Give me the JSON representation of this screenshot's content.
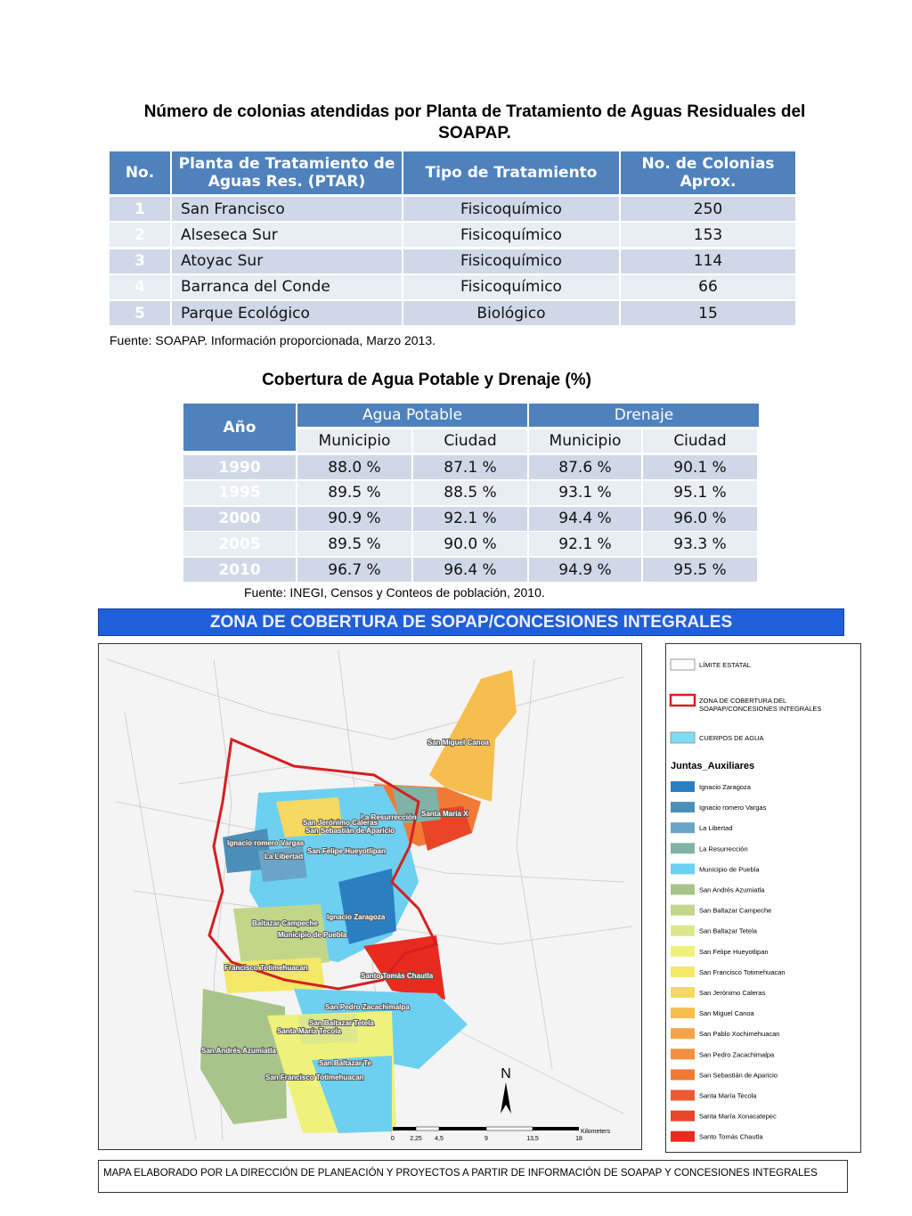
{
  "table1": {
    "title": "Número de colonias atendidas por Planta de Tratamiento de Aguas Residuales del SOAPAP.",
    "header": [
      "No.",
      "Planta de Tratamiento de Aguas Res. (PTAR)",
      "Tipo de Tratamiento",
      "No. de Colonias Aprox."
    ],
    "rows": [
      [
        "1",
        "San Francisco",
        "Fisicoquímico",
        "250"
      ],
      [
        "2",
        "Alseseca Sur",
        "Fisicoquímico",
        "153"
      ],
      [
        "3",
        "Atoyac Sur",
        "Fisicoquímico",
        "114"
      ],
      [
        "4",
        "Barranca del Conde",
        "Fisicoquímico",
        "66"
      ],
      [
        "5",
        "Parque Ecológico",
        "Biológico",
        "15"
      ]
    ],
    "source": "Fuente: SOAPAP. Información proporcionada, Marzo 2013."
  },
  "table2": {
    "title": "Cobertura de Agua Potable y Drenaje (%)",
    "header_top": [
      "Año",
      "Agua Potable",
      "Drenaje"
    ],
    "header_sub": [
      "Municipio",
      "Ciudad",
      "Municipio",
      "Ciudad"
    ],
    "rows": [
      [
        "1990",
        "88.0 %",
        "87.1 %",
        "87.6 %",
        "90.1 %"
      ],
      [
        "1995",
        "89.5 %",
        "88.5 %",
        "93.1 %",
        "95.1 %"
      ],
      [
        "2000",
        "90.9 %",
        "92.1 %",
        "94.4 %",
        "96.0 %"
      ],
      [
        "2005",
        "89.5 %",
        "90.0 %",
        "92.1 %",
        "93.3 %"
      ],
      [
        "2010",
        "96.7 %",
        "96.4 %",
        "94.9 %",
        "95.5 %"
      ]
    ],
    "source": "Fuente: INEGI, Censos y Conteos de población, 2010."
  },
  "map": {
    "title": "ZONA DE COBERTURA DE SOPAP/CONCESIONES INTEGRALES",
    "labels": [
      "San Miguel Canoa",
      "La Resurrección",
      "Santa María X",
      "San Jerónimo Caleras",
      "San Sebastián de Aparicio",
      "Ignacio romero Vargas",
      "San Felipe Hueyotlipan",
      "La Libertad",
      "Ignacio Zaragoza",
      "Baltazar Campeche",
      "Municipio de Puebla",
      "Francisco Totimehuacan",
      "Santo Tomás Chautla",
      "San Pedro Zacachimalpa",
      "San Baltazar Tetela",
      "Santa María Tecola",
      "San Andrés Azumiatla",
      "San Baltazar Te",
      "San Francisco Totimehuacan"
    ],
    "north": "N",
    "scale_unit": "Kilometers",
    "scale_ticks": [
      "0",
      "2,25",
      "4,5",
      "9",
      "13,5",
      "18"
    ],
    "legend_top": [
      {
        "lines": [
          "LÍMITE ESTATAL"
        ],
        "color": "#ffffff"
      },
      {
        "lines": [
          "ZONA DE COBERTURA DEL",
          "SOAPAP/CONCESIONES INTEGRALES"
        ],
        "color": "#d42020"
      },
      {
        "lines": [
          "CUERPOS DE AGUA"
        ],
        "color": "#7fdcf5"
      }
    ],
    "legend_heading": "Juntas_Auxiliares",
    "legend": [
      {
        "label": "Ignacio Zaragoza",
        "color": "#2b7fc0"
      },
      {
        "label": "Ignacio romero Vargas",
        "color": "#4a8fb8"
      },
      {
        "label": "La Libertad",
        "color": "#6aa5c8"
      },
      {
        "label": "La Resurrección",
        "color": "#7fb3a8"
      },
      {
        "label": "Municipio de Puebla",
        "color": "#6dd0f0"
      },
      {
        "label": "San Andrés Azumiatla",
        "color": "#a9c48a"
      },
      {
        "label": "San Baltazar Campeche",
        "color": "#c2d68a"
      },
      {
        "label": "San Baltazar Tetela",
        "color": "#dde88a"
      },
      {
        "label": "San Felipe Hueyotlipan",
        "color": "#eef27a"
      },
      {
        "label": "San Francisco Totimehuacan",
        "color": "#f5e866"
      },
      {
        "label": "San Jerónimo Caleras",
        "color": "#f7d860"
      },
      {
        "label": "San Miguel Canoa",
        "color": "#f7bd4f"
      },
      {
        "label": "San Pablo Xochimehuacan",
        "color": "#f5a34a"
      },
      {
        "label": "San Pedro Zacachimalpa",
        "color": "#f39040"
      },
      {
        "label": "San Sebastián de Aparicio",
        "color": "#f07a35"
      },
      {
        "label": "Santa María Tecola",
        "color": "#ec5a30"
      },
      {
        "label": "Santa María Xonacatepec",
        "color": "#e94527"
      },
      {
        "label": "Santo Tomás Chautla",
        "color": "#e82a1f"
      }
    ],
    "footer": "MAPA ELABORADO POR LA DIRECCIÓN DE PLANEACIÓN Y PROYECTOS A PARTIR DE INFORMACIÓN DE SOAPAP Y CONCESIONES INTEGRALES"
  }
}
